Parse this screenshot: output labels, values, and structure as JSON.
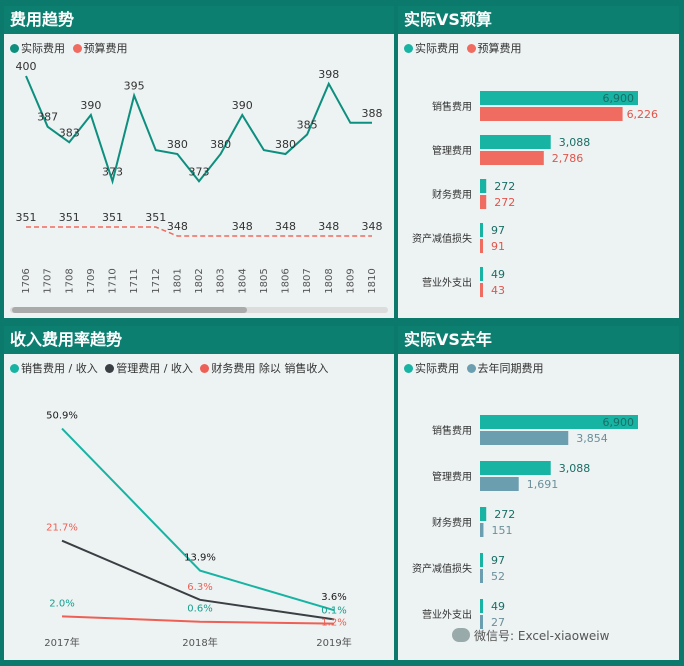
{
  "watermark": "微信号: Excel-xiaoweiw",
  "colors": {
    "actual": "#0d8f7f",
    "budget": "#f06b60",
    "teal": "#17b3a3",
    "dark": "#3a3f44",
    "red": "#ee6055",
    "lastyear": "#6b9fb0"
  },
  "trend": {
    "title": "费用趋势",
    "legend": [
      "实际费用",
      "预算费用"
    ],
    "chart_data": {
      "type": "line",
      "title": "费用趋势",
      "categories": [
        "1706",
        "1707",
        "1708",
        "1709",
        "1710",
        "1711",
        "1712",
        "1801",
        "1802",
        "1803",
        "1804",
        "1805",
        "1806",
        "1807",
        "1808",
        "1809",
        "1810"
      ],
      "series": [
        {
          "name": "实际费用",
          "values": [
            400,
            387,
            383,
            390,
            373,
            395,
            381,
            380,
            373,
            380,
            390,
            381,
            380,
            385,
            398,
            388,
            388
          ],
          "labels": [
            "400",
            "387",
            "383",
            "390",
            "373",
            "395",
            "",
            "380",
            "373",
            "380",
            "390",
            "",
            "380",
            "385",
            "398",
            "",
            "388"
          ]
        },
        {
          "name": "预算费用",
          "values": [
            351,
            351,
            351,
            351,
            351,
            351,
            351,
            348,
            348,
            348,
            348,
            348,
            348,
            348,
            348,
            348,
            348
          ],
          "labels": [
            "351",
            "",
            "351",
            "",
            "351",
            "",
            "351",
            "348",
            "",
            "",
            "348",
            "",
            "348",
            "",
            "348",
            "",
            "348"
          ]
        }
      ]
    }
  },
  "budget": {
    "title": "实际VS预算",
    "legend": [
      "实际费用",
      "预算费用"
    ],
    "chart_data": {
      "type": "bar",
      "categories": [
        "销售费用",
        "管理费用",
        "财务费用",
        "资产减值损失",
        "营业外支出"
      ],
      "series": [
        {
          "name": "实际费用",
          "values": [
            6900,
            3088,
            272,
            97,
            49
          ],
          "labels": [
            "6,900",
            "3,088",
            "272",
            "97",
            "49"
          ]
        },
        {
          "name": "预算费用",
          "values": [
            6226,
            2786,
            272,
            91,
            43
          ],
          "labels": [
            "6,226",
            "2,786",
            "272",
            "91",
            "43"
          ]
        }
      ]
    }
  },
  "ratio": {
    "title": "收入费用率趋势",
    "legend": [
      "销售费用 / 收入",
      "管理费用 / 收入",
      "财务费用 除以 销售收入"
    ],
    "chart_data": {
      "type": "line",
      "categories": [
        "2017年",
        "2018年",
        "2019年"
      ],
      "series": [
        {
          "name": "销售费用 / 收入",
          "values": [
            50.9,
            13.9,
            3.6
          ],
          "labels": [
            "50.9%",
            "13.9%",
            "3.6%"
          ]
        },
        {
          "name": "管理费用 / 收入",
          "values": [
            21.7,
            6.3,
            1.2
          ],
          "labels": [
            "21.7%",
            "6.3%",
            "1.2%"
          ]
        },
        {
          "name": "财务费用 除以 销售收入",
          "values": [
            2.0,
            0.6,
            0.1
          ],
          "labels": [
            "2.0%",
            "0.6%",
            "0.1%"
          ]
        }
      ]
    }
  },
  "lastyear": {
    "title": "实际VS去年",
    "legend": [
      "实际费用",
      "去年同期费用"
    ],
    "chart_data": {
      "type": "bar",
      "categories": [
        "销售费用",
        "管理费用",
        "财务费用",
        "资产减值损失",
        "营业外支出"
      ],
      "series": [
        {
          "name": "实际费用",
          "values": [
            6900,
            3088,
            272,
            97,
            49
          ],
          "labels": [
            "6,900",
            "3,088",
            "272",
            "97",
            "49"
          ]
        },
        {
          "name": "去年同期费用",
          "values": [
            3854,
            1691,
            151,
            52,
            27
          ],
          "labels": [
            "3,854",
            "1,691",
            "151",
            "52",
            "27"
          ]
        }
      ]
    }
  }
}
